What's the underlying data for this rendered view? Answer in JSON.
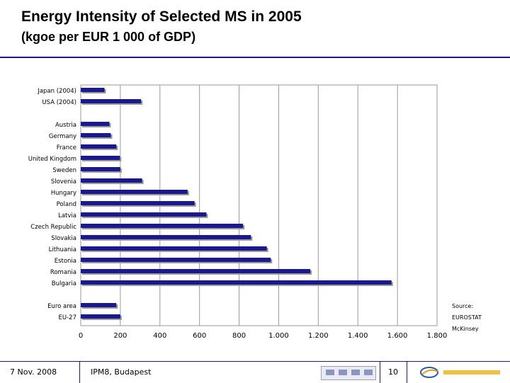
{
  "header": {
    "title": "Energy Intensity of Selected MS in 2005",
    "subtitle": "(kgoe per EUR 1 000 of GDP)"
  },
  "source": {
    "label": "Source:",
    "lines": [
      "EUROSTAT",
      "McKinsey"
    ]
  },
  "footer": {
    "date": "7 Nov. 2008",
    "event": "IPM8, Budapest",
    "page": "10"
  },
  "colors": {
    "bar": "#1a1a8c",
    "bar_shadow": "#9a9a9a",
    "grid": "#9a9a9a"
  },
  "chart_data": {
    "type": "bar",
    "orientation": "horizontal",
    "categories": [
      "Japan (2004)",
      "USA (2004)",
      "Austria",
      "Germany",
      "France",
      "United Kingdom",
      "Sweden",
      "Slovenia",
      "Hungary",
      "Poland",
      "Latvia",
      "Czech Republic",
      "Slovakia",
      "Lithuania",
      "Estonia",
      "Romania",
      "Bulgaria",
      "Euro area",
      "EU-27"
    ],
    "groups": [
      2,
      15,
      2
    ],
    "values": [
      120,
      305,
      145,
      152,
      180,
      198,
      200,
      310,
      540,
      575,
      635,
      820,
      860,
      940,
      960,
      1160,
      1570,
      180,
      200
    ],
    "xlim": [
      0,
      1800
    ],
    "xticks": [
      0,
      200,
      400,
      600,
      800,
      1000,
      1200,
      1400,
      1600,
      1800
    ],
    "xtick_labels": [
      "0",
      "200",
      "400",
      "600",
      "800",
      "1.000",
      "1.200",
      "1.400",
      "1.600",
      "1.800"
    ],
    "grid": true
  }
}
